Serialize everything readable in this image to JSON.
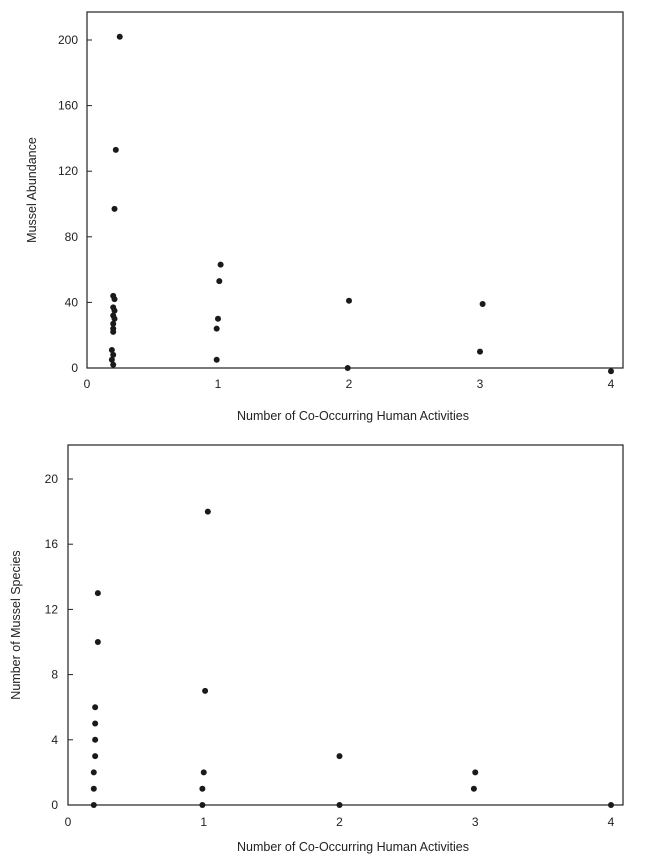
{
  "chart_data": [
    {
      "type": "scatter",
      "title": "",
      "xlabel": "Number of Co-Occurring Human Activities",
      "ylabel": "Mussel Abundance",
      "xlim": [
        0,
        4.2
      ],
      "ylim": [
        0,
        215
      ],
      "xticks": [
        "0",
        "1",
        "2",
        "3",
        "4"
      ],
      "yticks": [
        "0",
        "40",
        "80",
        "120",
        "160",
        "200"
      ],
      "grid": false,
      "points": [
        {
          "x": 0.25,
          "y": 202
        },
        {
          "x": 0.22,
          "y": 133
        },
        {
          "x": 0.21,
          "y": 97
        },
        {
          "x": 0.2,
          "y": 44
        },
        {
          "x": 0.21,
          "y": 42
        },
        {
          "x": 0.2,
          "y": 37
        },
        {
          "x": 0.21,
          "y": 35
        },
        {
          "x": 0.2,
          "y": 32
        },
        {
          "x": 0.21,
          "y": 30
        },
        {
          "x": 0.2,
          "y": 27
        },
        {
          "x": 0.2,
          "y": 24
        },
        {
          "x": 0.2,
          "y": 22
        },
        {
          "x": 0.19,
          "y": 11
        },
        {
          "x": 0.2,
          "y": 8
        },
        {
          "x": 0.19,
          "y": 5
        },
        {
          "x": 0.2,
          "y": 2
        },
        {
          "x": 1.02,
          "y": 63
        },
        {
          "x": 1.01,
          "y": 53
        },
        {
          "x": 1.0,
          "y": 30
        },
        {
          "x": 0.99,
          "y": 24
        },
        {
          "x": 0.99,
          "y": 5
        },
        {
          "x": 2.0,
          "y": 41
        },
        {
          "x": 1.99,
          "y": 0
        },
        {
          "x": 3.02,
          "y": 39
        },
        {
          "x": 3.0,
          "y": 10
        },
        {
          "x": 4.0,
          "y": -2
        }
      ]
    },
    {
      "type": "scatter",
      "title": "",
      "xlabel": "Number of Co-Occurring Human Activities",
      "ylabel": "Number of Mussel Species",
      "xlim": [
        0,
        4.2
      ],
      "ylim": [
        0,
        22
      ],
      "xticks": [
        "0",
        "1",
        "2",
        "3",
        "4"
      ],
      "yticks": [
        "0",
        "4",
        "8",
        "12",
        "16",
        "20"
      ],
      "grid": false,
      "points": [
        {
          "x": 0.22,
          "y": 13
        },
        {
          "x": 0.22,
          "y": 10
        },
        {
          "x": 0.2,
          "y": 6
        },
        {
          "x": 0.2,
          "y": 5
        },
        {
          "x": 0.2,
          "y": 4
        },
        {
          "x": 0.2,
          "y": 3
        },
        {
          "x": 0.19,
          "y": 2
        },
        {
          "x": 0.19,
          "y": 1
        },
        {
          "x": 0.19,
          "y": 0
        },
        {
          "x": 1.03,
          "y": 18
        },
        {
          "x": 1.01,
          "y": 7
        },
        {
          "x": 1.0,
          "y": 2
        },
        {
          "x": 0.99,
          "y": 1
        },
        {
          "x": 0.99,
          "y": 0
        },
        {
          "x": 2.0,
          "y": 3
        },
        {
          "x": 2.0,
          "y": 0
        },
        {
          "x": 3.0,
          "y": 2
        },
        {
          "x": 2.99,
          "y": 1
        },
        {
          "x": 4.0,
          "y": 0
        }
      ]
    }
  ]
}
